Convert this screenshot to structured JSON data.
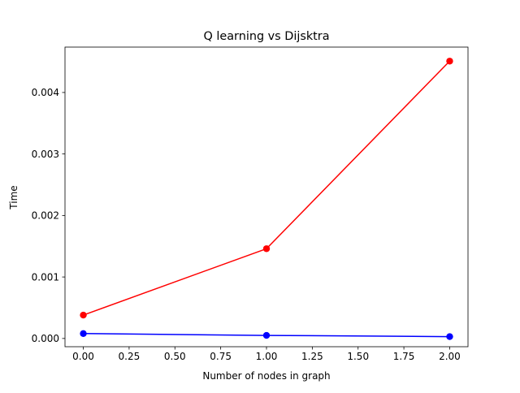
{
  "chart_data": {
    "type": "line",
    "title": "Q learning vs Dijsktra",
    "xlabel": "Number of nodes in graph",
    "ylabel": "Time",
    "x": [
      0,
      1,
      2
    ],
    "xlim": [
      -0.1,
      2.1
    ],
    "ylim": [
      -0.000134,
      0.004738
    ],
    "xticks": [
      0.0,
      0.25,
      0.5,
      0.75,
      1.0,
      1.25,
      1.5,
      1.75,
      2.0
    ],
    "xtick_labels": [
      "0.00",
      "0.25",
      "0.50",
      "0.75",
      "1.00",
      "1.25",
      "1.50",
      "1.75",
      "2.00"
    ],
    "yticks": [
      0.0,
      0.001,
      0.002,
      0.003,
      0.004
    ],
    "ytick_labels": [
      "0.000",
      "0.001",
      "0.002",
      "0.003",
      "0.004"
    ],
    "grid": false,
    "legend": "none",
    "series": [
      {
        "color": "#ff0000",
        "marker": "circle",
        "values": [
          0.00038,
          0.00146,
          0.00451
        ]
      },
      {
        "color": "#0000ff",
        "marker": "circle",
        "values": [
          8e-05,
          5e-05,
          3e-05
        ]
      }
    ]
  }
}
